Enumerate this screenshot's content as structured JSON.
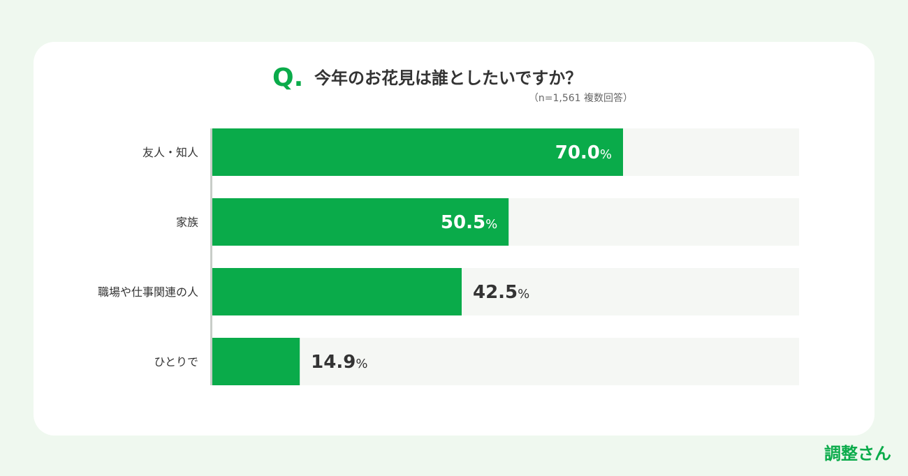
{
  "question": {
    "mark": "Q.",
    "title": "今年のお花見は誰としたいですか？",
    "note": "（n=1,561 複数回答）"
  },
  "brand": "調整さん",
  "colors": {
    "bar": "#0aab4a",
    "track": "#f5f7f4",
    "axis": "#c8cdc8",
    "label_inside": "#ffffff",
    "label_outside": "#333333"
  },
  "chart_data": {
    "type": "bar",
    "orientation": "horizontal",
    "categories": [
      "友人・知人",
      "家族",
      "職場や仕事関連の人",
      "ひとりで"
    ],
    "values": [
      70.0,
      50.5,
      42.5,
      14.9
    ],
    "value_labels": [
      "70.0",
      "50.5",
      "42.5",
      "14.9"
    ],
    "unit": "%",
    "xlim": [
      0,
      100
    ],
    "grid": false,
    "legend": "none"
  }
}
